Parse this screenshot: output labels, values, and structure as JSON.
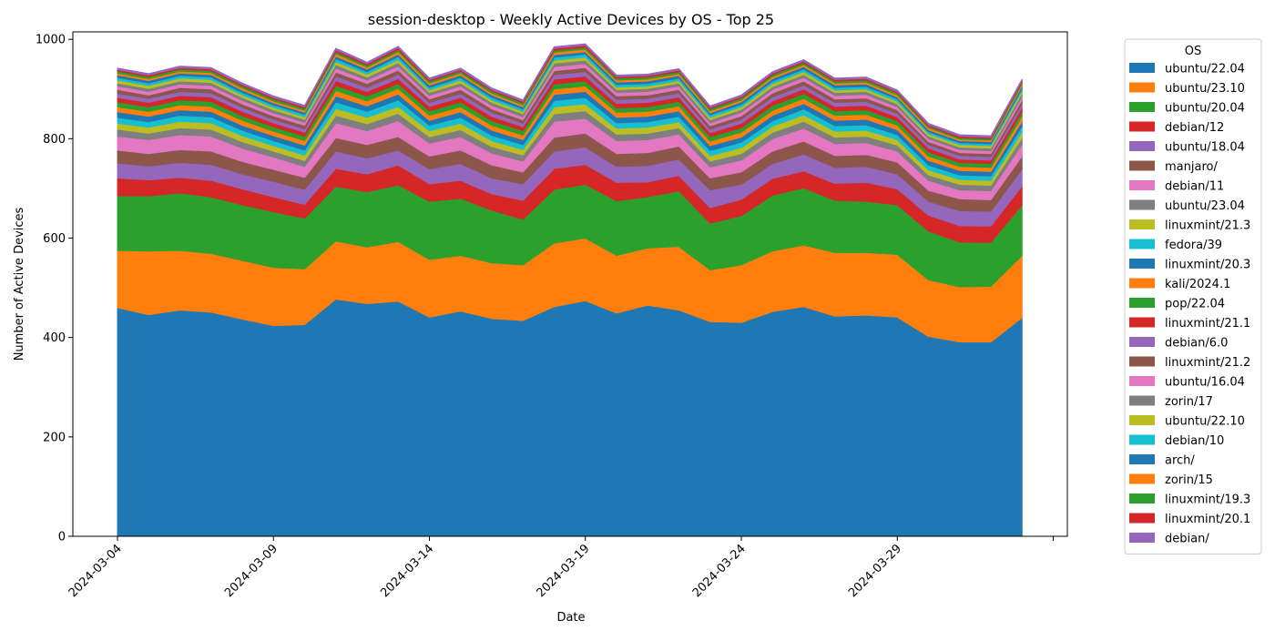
{
  "chart_data": {
    "type": "area",
    "title": "session-desktop - Weekly Active Devices by OS - Top 25",
    "xlabel": "Date",
    "ylabel": "Number of Active Devices",
    "ylim": [
      0,
      1015
    ],
    "yticks": [
      0,
      200,
      400,
      600,
      800,
      1000
    ],
    "xticks": [
      "2024-03-04",
      "2024-03-09",
      "2024-03-14",
      "2024-03-19",
      "2024-03-24",
      "2024-03-29",
      ""
    ],
    "legend_title": "OS",
    "legend_position": "outside-right",
    "grid": false,
    "x": [
      "2024-03-04",
      "2024-03-05",
      "2024-03-06",
      "2024-03-07",
      "2024-03-08",
      "2024-03-09",
      "2024-03-10",
      "2024-03-11",
      "2024-03-12",
      "2024-03-13",
      "2024-03-14",
      "2024-03-15",
      "2024-03-16",
      "2024-03-17",
      "2024-03-18",
      "2024-03-19",
      "2024-03-20",
      "2024-03-21",
      "2024-03-22",
      "2024-03-23",
      "2024-03-24",
      "2024-03-25",
      "2024-03-26",
      "2024-03-27",
      "2024-03-28",
      "2024-03-29",
      "2024-03-30",
      "2024-03-31",
      "2024-04-01",
      "2024-04-02"
    ],
    "series": [
      {
        "name": "ubuntu/22.04",
        "color": "#1f77b4",
        "values": [
          460,
          446,
          455,
          451,
          437,
          424,
          426,
          477,
          468,
          473,
          441,
          453,
          438,
          434,
          462,
          474,
          449,
          465,
          455,
          432,
          430,
          452,
          462,
          443,
          445,
          441,
          402,
          391,
          391,
          440
        ]
      },
      {
        "name": "ubuntu/23.10",
        "color": "#ff7f0e",
        "values": [
          115,
          128,
          120,
          118,
          118,
          117,
          112,
          117,
          114,
          120,
          116,
          112,
          112,
          112,
          128,
          126,
          116,
          115,
          128,
          104,
          116,
          122,
          124,
          128,
          126,
          126,
          114,
          111,
          112,
          125
        ]
      },
      {
        "name": "ubuntu/20.04",
        "color": "#2ca02c",
        "values": [
          110,
          111,
          116,
          114,
          112,
          112,
          102,
          110,
          111,
          114,
          117,
          115,
          106,
          92,
          108,
          108,
          110,
          103,
          112,
          94,
          99,
          112,
          115,
          105,
          103,
          100,
          98,
          90,
          88,
          102
        ]
      },
      {
        "name": "debian/12",
        "color": "#d62728",
        "values": [
          36,
          32,
          31,
          33,
          32,
          30,
          28,
          36,
          36,
          40,
          35,
          36,
          33,
          38,
          42,
          40,
          37,
          30,
          31,
          31,
          33,
          34,
          34,
          34,
          38,
          32,
          32,
          33,
          33,
          38
        ]
      },
      {
        "name": "ubuntu/18.04",
        "color": "#9467bd",
        "values": [
          30,
          28,
          30,
          32,
          30,
          31,
          30,
          35,
          32,
          30,
          30,
          34,
          32,
          33,
          35,
          35,
          32,
          33,
          33,
          36,
          30,
          30,
          34,
          32,
          32,
          30,
          28,
          30,
          30,
          34
        ]
      },
      {
        "name": "manjaro/",
        "color": "#8c564b",
        "values": [
          26,
          25,
          26,
          27,
          25,
          24,
          24,
          27,
          27,
          27,
          26,
          27,
          26,
          24,
          28,
          28,
          26,
          26,
          26,
          24,
          25,
          25,
          26,
          24,
          24,
          24,
          22,
          24,
          23,
          26
        ]
      },
      {
        "name": "debian/11",
        "color": "#e377c2",
        "values": [
          28,
          28,
          30,
          30,
          27,
          25,
          22,
          30,
          28,
          32,
          26,
          27,
          24,
          22,
          32,
          30,
          26,
          26,
          24,
          22,
          24,
          25,
          26,
          24,
          24,
          22,
          20,
          18,
          18,
          24
        ]
      },
      {
        "name": "ubuntu/23.04",
        "color": "#7f7f7f",
        "values": [
          14,
          13,
          14,
          14,
          13,
          12,
          12,
          15,
          14,
          15,
          13,
          14,
          13,
          12,
          15,
          15,
          13,
          13,
          13,
          12,
          13,
          13,
          14,
          13,
          13,
          12,
          11,
          11,
          11,
          13
        ]
      },
      {
        "name": "linuxmint/21.3",
        "color": "#bcbd22",
        "values": [
          12,
          12,
          13,
          13,
          12,
          11,
          11,
          14,
          13,
          14,
          12,
          13,
          12,
          11,
          14,
          14,
          12,
          12,
          12,
          11,
          12,
          12,
          13,
          12,
          12,
          11,
          10,
          10,
          10,
          12
        ]
      },
      {
        "name": "fedora/39",
        "color": "#17becf",
        "values": [
          12,
          11,
          12,
          12,
          11,
          10,
          10,
          13,
          12,
          13,
          11,
          12,
          11,
          10,
          13,
          13,
          11,
          11,
          11,
          10,
          11,
          11,
          12,
          11,
          11,
          10,
          10,
          9,
          9,
          11
        ]
      },
      {
        "name": "linuxmint/20.3",
        "color": "#1f77b4",
        "values": [
          11,
          11,
          11,
          11,
          10,
          10,
          10,
          12,
          11,
          12,
          10,
          11,
          10,
          10,
          12,
          12,
          11,
          11,
          11,
          10,
          10,
          11,
          11,
          11,
          11,
          10,
          9,
          9,
          9,
          10
        ]
      },
      {
        "name": "kali/2024.1",
        "color": "#ff7f0e",
        "values": [
          10,
          10,
          10,
          10,
          10,
          9,
          9,
          11,
          10,
          11,
          10,
          10,
          10,
          9,
          11,
          11,
          10,
          10,
          10,
          9,
          10,
          10,
          10,
          10,
          10,
          9,
          9,
          8,
          8,
          10
        ]
      },
      {
        "name": "pop/22.04",
        "color": "#2ca02c",
        "values": [
          10,
          9,
          10,
          10,
          9,
          9,
          9,
          10,
          10,
          10,
          9,
          10,
          9,
          9,
          10,
          10,
          9,
          9,
          9,
          9,
          9,
          10,
          10,
          9,
          9,
          9,
          8,
          8,
          8,
          9
        ]
      },
      {
        "name": "linuxmint/21.1",
        "color": "#d62728",
        "values": [
          9,
          9,
          9,
          9,
          9,
          8,
          8,
          10,
          9,
          10,
          9,
          9,
          9,
          8,
          10,
          10,
          9,
          9,
          9,
          8,
          9,
          9,
          9,
          9,
          9,
          8,
          8,
          7,
          7,
          9
        ]
      },
      {
        "name": "debian/6.0",
        "color": "#9467bd",
        "values": [
          8,
          8,
          8,
          8,
          8,
          7,
          7,
          9,
          8,
          9,
          8,
          8,
          8,
          7,
          9,
          9,
          8,
          8,
          8,
          7,
          8,
          8,
          8,
          8,
          8,
          7,
          7,
          7,
          7,
          8
        ]
      },
      {
        "name": "linuxmint/21.2",
        "color": "#8c564b",
        "values": [
          8,
          7,
          8,
          8,
          7,
          7,
          7,
          8,
          8,
          8,
          7,
          8,
          7,
          7,
          8,
          8,
          7,
          7,
          7,
          7,
          7,
          8,
          8,
          7,
          7,
          7,
          6,
          6,
          6,
          7
        ]
      },
      {
        "name": "ubuntu/16.04",
        "color": "#e377c2",
        "values": [
          7,
          7,
          7,
          7,
          7,
          6,
          6,
          8,
          7,
          8,
          7,
          7,
          7,
          6,
          8,
          8,
          7,
          7,
          7,
          6,
          7,
          7,
          7,
          7,
          7,
          6,
          6,
          6,
          6,
          7
        ]
      },
      {
        "name": "zorin/17",
        "color": "#7f7f7f",
        "values": [
          6,
          6,
          6,
          6,
          6,
          6,
          6,
          7,
          6,
          7,
          6,
          6,
          6,
          6,
          7,
          7,
          6,
          6,
          6,
          6,
          6,
          6,
          6,
          6,
          6,
          6,
          5,
          5,
          5,
          6
        ]
      },
      {
        "name": "ubuntu/22.10",
        "color": "#bcbd22",
        "values": [
          6,
          6,
          6,
          6,
          5,
          5,
          5,
          6,
          6,
          6,
          5,
          6,
          5,
          5,
          6,
          6,
          5,
          5,
          5,
          5,
          5,
          6,
          6,
          5,
          5,
          5,
          5,
          5,
          5,
          5
        ]
      },
      {
        "name": "debian/10",
        "color": "#17becf",
        "values": [
          5,
          5,
          5,
          5,
          5,
          5,
          5,
          6,
          5,
          6,
          5,
          5,
          5,
          5,
          6,
          6,
          5,
          5,
          5,
          5,
          5,
          5,
          5,
          5,
          5,
          5,
          4,
          4,
          4,
          5
        ]
      },
      {
        "name": "arch/",
        "color": "#1f77b4",
        "values": [
          5,
          5,
          5,
          5,
          5,
          4,
          4,
          5,
          5,
          5,
          5,
          5,
          5,
          4,
          5,
          5,
          5,
          5,
          5,
          4,
          5,
          5,
          5,
          5,
          5,
          4,
          4,
          4,
          4,
          5
        ]
      },
      {
        "name": "zorin/15",
        "color": "#ff7f0e",
        "values": [
          4,
          4,
          4,
          4,
          4,
          4,
          4,
          5,
          4,
          5,
          4,
          4,
          4,
          4,
          5,
          5,
          4,
          4,
          4,
          4,
          4,
          4,
          4,
          4,
          4,
          4,
          4,
          3,
          3,
          4
        ]
      },
      {
        "name": "linuxmint/19.3",
        "color": "#2ca02c",
        "values": [
          4,
          4,
          4,
          4,
          4,
          4,
          4,
          4,
          4,
          4,
          4,
          4,
          4,
          4,
          4,
          4,
          4,
          4,
          4,
          4,
          4,
          4,
          4,
          4,
          4,
          4,
          3,
          3,
          3,
          4
        ]
      },
      {
        "name": "linuxmint/20.1",
        "color": "#d62728",
        "values": [
          3,
          3,
          3,
          3,
          3,
          3,
          3,
          4,
          3,
          4,
          3,
          3,
          3,
          3,
          4,
          4,
          3,
          3,
          3,
          3,
          3,
          3,
          3,
          3,
          3,
          3,
          3,
          3,
          3,
          3
        ]
      },
      {
        "name": "debian/",
        "color": "#9467bd",
        "values": [
          3,
          3,
          3,
          3,
          3,
          3,
          3,
          3,
          3,
          3,
          3,
          3,
          3,
          3,
          3,
          3,
          3,
          3,
          3,
          3,
          3,
          3,
          3,
          3,
          3,
          3,
          3,
          3,
          3,
          3
        ]
      }
    ]
  }
}
